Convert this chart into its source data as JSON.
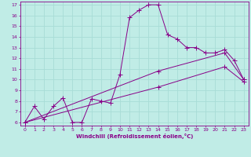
{
  "xlabel": "Windchill (Refroidissement éolien,°C)",
  "bg_color": "#c0ece6",
  "grid_color": "#a8dcd6",
  "line_color": "#880088",
  "ylim": [
    5.7,
    17.3
  ],
  "xlim": [
    -0.5,
    23.5
  ],
  "yticks": [
    6,
    7,
    8,
    9,
    10,
    11,
    12,
    13,
    14,
    15,
    16,
    17
  ],
  "xticks": [
    0,
    1,
    2,
    3,
    4,
    5,
    6,
    7,
    8,
    9,
    10,
    11,
    12,
    13,
    14,
    15,
    16,
    17,
    18,
    19,
    20,
    21,
    22,
    23
  ],
  "line1_x": [
    0,
    1,
    2,
    3,
    4,
    5,
    6,
    7,
    8,
    9,
    10,
    11,
    12,
    13,
    14,
    15,
    16,
    17,
    18,
    19,
    20,
    21,
    22,
    23
  ],
  "line1_y": [
    6.0,
    7.5,
    6.3,
    7.5,
    8.3,
    6.0,
    6.0,
    8.2,
    8.0,
    7.8,
    10.5,
    15.8,
    16.5,
    17.0,
    17.0,
    14.2,
    13.8,
    13.0,
    13.0,
    12.5,
    12.5,
    12.8,
    11.8,
    10.0
  ],
  "line2_x": [
    0,
    14,
    21,
    23
  ],
  "line2_y": [
    6.0,
    10.8,
    12.5,
    10.0
  ],
  "line3_x": [
    0,
    14,
    21,
    23
  ],
  "line3_y": [
    6.0,
    9.3,
    11.2,
    9.8
  ]
}
